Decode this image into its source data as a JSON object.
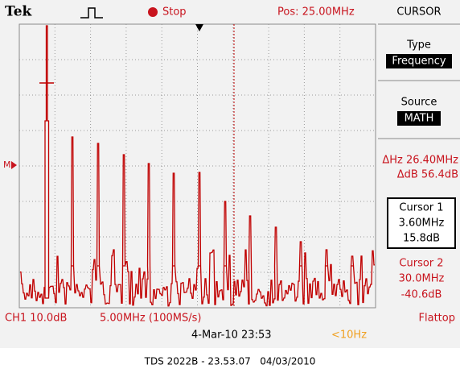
{
  "header": {
    "brand": "Tek",
    "status": "Stop",
    "position": "Pos: 25.00MHz"
  },
  "ref_marker": "M",
  "menu": {
    "title": "CURSOR",
    "type_label": "Type",
    "type_value": "Frequency",
    "source_label": "Source",
    "source_value": "MATH",
    "delta_hz": "ΔHz 26.40MHz",
    "delta_db": "ΔdB 56.4dB",
    "cursor1": {
      "label": "Cursor 1",
      "freq": "3.60MHz",
      "level": "15.8dB"
    },
    "cursor2": {
      "label": "Cursor 2",
      "freq": "30.0MHz",
      "level": "-40.6dB"
    }
  },
  "footer": {
    "channel": "CH1 10.0dB",
    "timebase": "5.00MHz (100MS/s)",
    "window": "Flattop",
    "datetime": "4-Mar-10 23:53",
    "trigger_freq": "<10Hz"
  },
  "caption": "TDS 2022B - 23.53.07   04/03/2010"
}
